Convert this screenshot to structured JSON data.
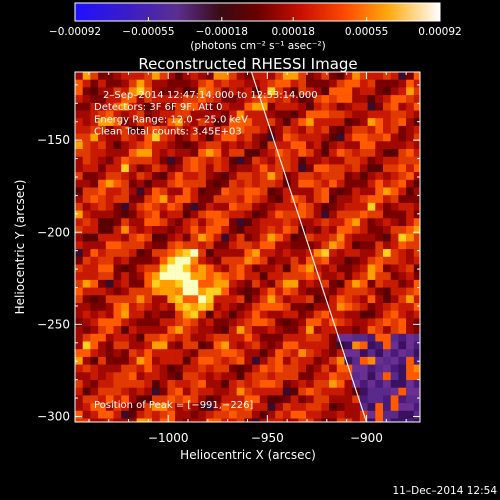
{
  "chart_data": {
    "type": "heatmap",
    "title": "Reconstructed RHESSI Image",
    "xlabel": "Heliocentric X (arcsec)",
    "ylabel": "Heliocentric Y (arcsec)",
    "xlim": [
      -1047,
      -873
    ],
    "ylim": [
      -303,
      -113
    ],
    "x_ticks": [
      -1000,
      -950,
      -900
    ],
    "x_tick_labels": [
      "−1000",
      "−950",
      "−900"
    ],
    "y_ticks": [
      -150,
      -200,
      -250,
      -300
    ],
    "y_tick_labels": [
      "−150",
      "−200",
      "−250",
      "−300"
    ],
    "colorbar": {
      "min": -0.00092,
      "max": 0.00092,
      "tick_values": [
        -0.00092,
        -0.00055,
        -0.00018,
        0.00018,
        0.00055,
        0.00092
      ],
      "tick_labels": [
        "−0.00092",
        "−0.00055",
        "−0.00018",
        "0.00018",
        "0.00055",
        "0.00092"
      ],
      "units_label": "(photons cm⁻² s⁻¹ asec⁻²)"
    },
    "info_lines": [
      "2–Sep–2014 12:47:14.000 to 12:53:14.000",
      "Detectors: 3F 6F 9F, Att 0",
      "Energy Range: 12.0 – 25.0 keV",
      "Clean     Total counts: 3.45E+03"
    ],
    "peak": {
      "x": -991,
      "y": -226,
      "label": "Position of Peak = [−991,−226]"
    },
    "limb_line": [
      {
        "x": -958,
        "y": -113
      },
      {
        "x": -900,
        "y": -303
      }
    ]
  },
  "footer": {
    "timestamp": "11–Dec–2014 12:54"
  }
}
